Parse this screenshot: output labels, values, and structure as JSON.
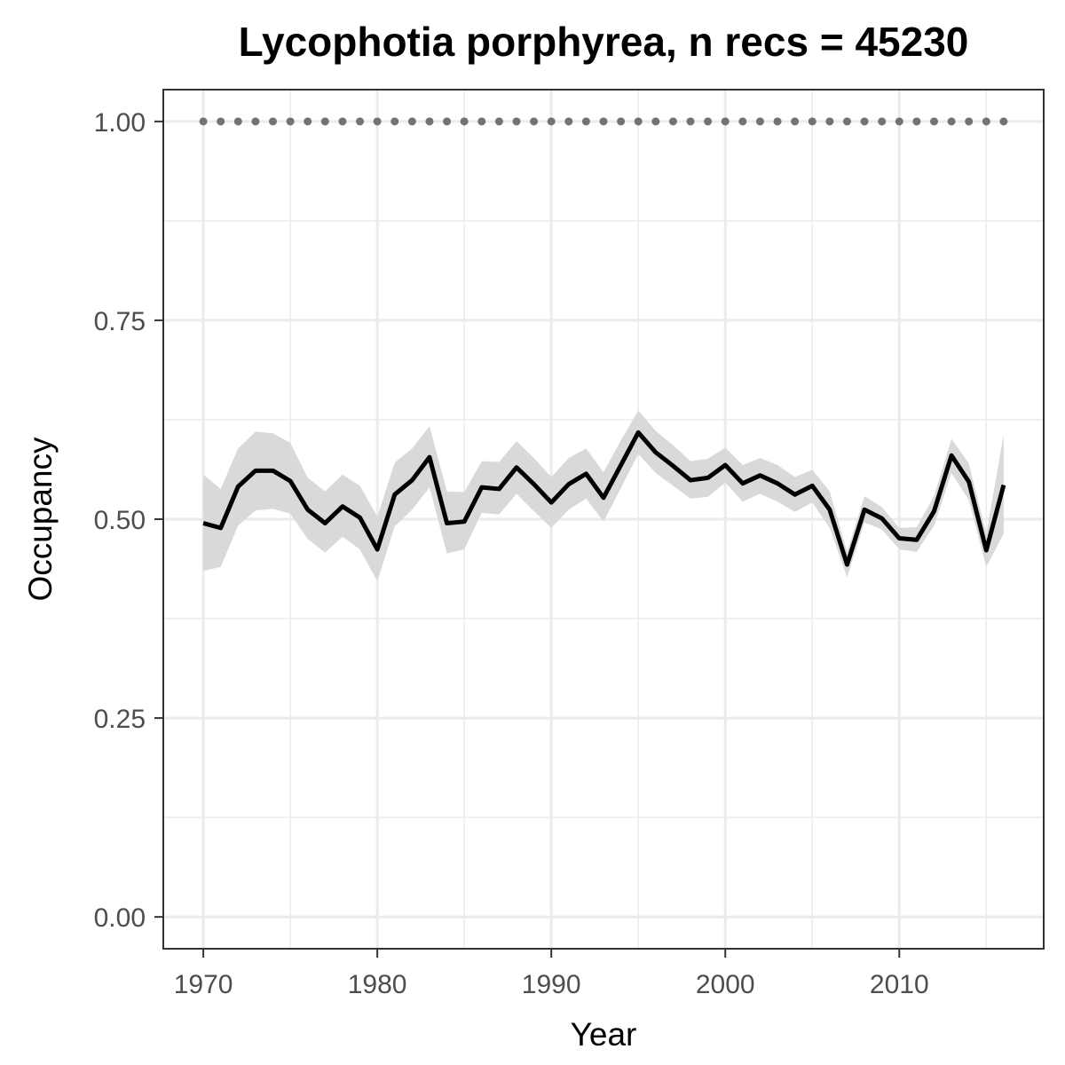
{
  "chart_data": {
    "type": "line",
    "title": "Lycophotia porphyrea, n recs = 45230",
    "xlabel": "Year",
    "ylabel": "Occupancy",
    "xlim": [
      1967.7,
      2018.3
    ],
    "ylim": [
      -0.04,
      1.04
    ],
    "x_ticks": [
      1970,
      1980,
      1990,
      2000,
      2010
    ],
    "y_ticks": [
      0.0,
      0.25,
      0.5,
      0.75,
      1.0
    ],
    "y_tick_labels": [
      "0.00",
      "0.25",
      "0.50",
      "0.75",
      "1.00"
    ],
    "grid": true,
    "colors": {
      "line": "#000000",
      "ribbon": "#d9d9d9",
      "reference": "#737373",
      "grid": "#ebebeb",
      "border": "#333333"
    },
    "x": [
      1970,
      1971,
      1972,
      1973,
      1974,
      1975,
      1976,
      1977,
      1978,
      1979,
      1980,
      1981,
      1982,
      1983,
      1984,
      1985,
      1986,
      1987,
      1988,
      1989,
      1990,
      1991,
      1992,
      1993,
      1994,
      1995,
      1996,
      1997,
      1998,
      1999,
      2000,
      2001,
      2002,
      2003,
      2004,
      2005,
      2006,
      2007,
      2008,
      2009,
      2010,
      2011,
      2012,
      2013,
      2014,
      2015,
      2016
    ],
    "series": [
      {
        "values": [
          0.495,
          0.489,
          0.541,
          0.561,
          0.561,
          0.548,
          0.512,
          0.495,
          0.516,
          0.502,
          0.462,
          0.531,
          0.549,
          0.578,
          0.495,
          0.497,
          0.54,
          0.538,
          0.565,
          0.544,
          0.521,
          0.544,
          0.557,
          0.527,
          0.568,
          0.609,
          0.584,
          0.567,
          0.549,
          0.552,
          0.568,
          0.545,
          0.555,
          0.545,
          0.531,
          0.542,
          0.512,
          0.443,
          0.512,
          0.501,
          0.476,
          0.474,
          0.51,
          0.58,
          0.547,
          0.461,
          0.543
        ],
        "lower": [
          0.435,
          0.44,
          0.492,
          0.511,
          0.513,
          0.507,
          0.475,
          0.458,
          0.478,
          0.462,
          0.422,
          0.491,
          0.512,
          0.54,
          0.457,
          0.462,
          0.508,
          0.506,
          0.532,
          0.51,
          0.489,
          0.512,
          0.526,
          0.497,
          0.539,
          0.582,
          0.558,
          0.542,
          0.526,
          0.528,
          0.546,
          0.522,
          0.532,
          0.522,
          0.509,
          0.521,
          0.489,
          0.427,
          0.496,
          0.487,
          0.462,
          0.459,
          0.492,
          0.558,
          0.524,
          0.44,
          0.482
        ],
        "upper": [
          0.556,
          0.538,
          0.589,
          0.61,
          0.608,
          0.596,
          0.552,
          0.535,
          0.556,
          0.542,
          0.503,
          0.571,
          0.589,
          0.617,
          0.535,
          0.534,
          0.573,
          0.572,
          0.598,
          0.577,
          0.553,
          0.577,
          0.589,
          0.559,
          0.599,
          0.637,
          0.611,
          0.593,
          0.573,
          0.576,
          0.59,
          0.568,
          0.577,
          0.568,
          0.553,
          0.562,
          0.535,
          0.459,
          0.529,
          0.515,
          0.489,
          0.49,
          0.529,
          0.601,
          0.57,
          0.482,
          0.606
        ]
      },
      {
        "values": [
          1,
          1,
          1,
          1,
          1,
          1,
          1,
          1,
          1,
          1,
          1,
          1,
          1,
          1,
          1,
          1,
          1,
          1,
          1,
          1,
          1,
          1,
          1,
          1,
          1,
          1,
          1,
          1,
          1,
          1,
          1,
          1,
          1,
          1,
          1,
          1,
          1,
          1,
          1,
          1,
          1,
          1,
          1,
          1,
          1,
          1,
          1
        ]
      }
    ]
  }
}
